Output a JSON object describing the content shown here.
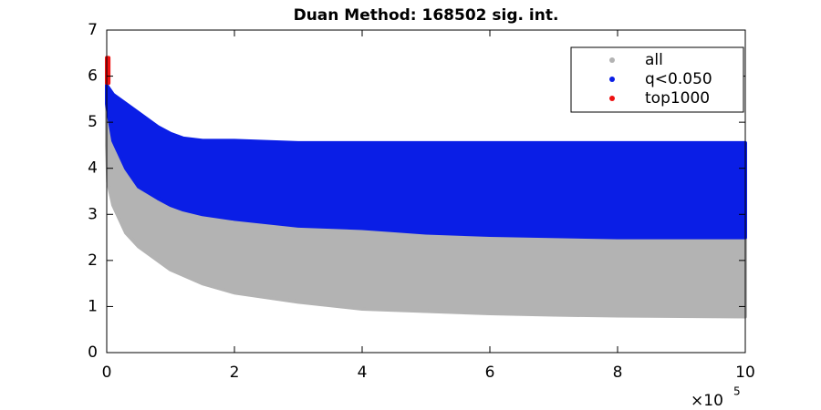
{
  "chart_data": {
    "type": "range-scatter",
    "title": "Duan Method: 168502 sig. int.",
    "x_exponent_label": {
      "base": "×10",
      "power": "5"
    },
    "xlim": [
      0,
      10
    ],
    "xticks": [
      0,
      2,
      4,
      6,
      8,
      10
    ],
    "ylim": [
      0,
      7
    ],
    "yticks": [
      0,
      1,
      2,
      3,
      4,
      5,
      6,
      7
    ],
    "legend": "northeast",
    "series": [
      {
        "name": "all",
        "color": "#b3b3b3",
        "x": [
          0,
          0.02,
          0.1,
          0.3,
          0.5,
          1,
          1.5,
          2,
          3,
          4,
          5,
          6,
          7,
          8,
          10
        ],
        "low": [
          4.5,
          3.7,
          3.2,
          2.6,
          2.3,
          1.8,
          1.5,
          1.3,
          1.1,
          0.95,
          0.9,
          0.85,
          0.82,
          0.8,
          0.78
        ],
        "high": [
          6,
          5.5,
          5,
          4.3,
          3.8,
          3.5,
          3.3,
          3.1,
          2.9,
          2.8,
          2.7,
          2.6,
          2.6,
          2.55,
          2.5
        ]
      },
      {
        "name": "q<0.050",
        "color": "#0a1ee6",
        "x": [
          0,
          0.1,
          0.3,
          0.5,
          0.8,
          1,
          1.2,
          1.5,
          2,
          3,
          4,
          5,
          6,
          8,
          10
        ],
        "low": [
          5.4,
          4.6,
          4.0,
          3.6,
          3.35,
          3.2,
          3.1,
          3.0,
          2.9,
          2.75,
          2.7,
          2.6,
          2.55,
          2.5,
          2.5
        ],
        "high": [
          5.8,
          5.6,
          5.4,
          5.2,
          4.9,
          4.75,
          4.65,
          4.6,
          4.6,
          4.55,
          4.55,
          4.55,
          4.55,
          4.55,
          4.55
        ]
      },
      {
        "name": "top1000",
        "color": "#ee1111",
        "x": [
          0,
          0.03
        ],
        "low": [
          5.85,
          5.85
        ],
        "high": [
          6.4,
          6.4
        ]
      }
    ]
  }
}
